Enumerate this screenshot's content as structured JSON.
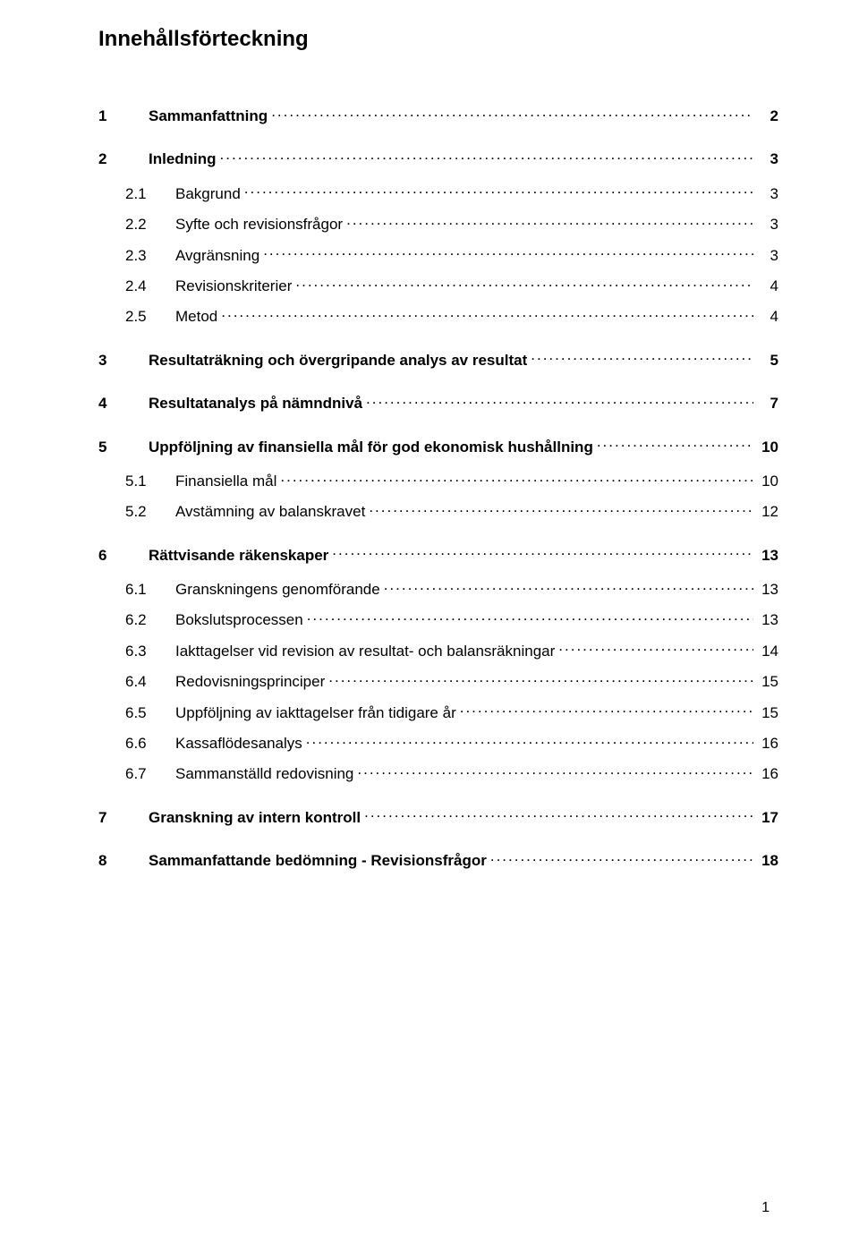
{
  "title": "Innehållsförteckning",
  "page_number": "1",
  "toc": [
    {
      "level": 0,
      "num": "1",
      "label": "Sammanfattning",
      "page": "2"
    },
    {
      "level": 0,
      "num": "2",
      "label": "Inledning",
      "page": "3"
    },
    {
      "level": 1,
      "num": "2.1",
      "label": "Bakgrund",
      "page": "3"
    },
    {
      "level": 1,
      "num": "2.2",
      "label": "Syfte och revisionsfrågor",
      "page": "3"
    },
    {
      "level": 1,
      "num": "2.3",
      "label": "Avgränsning",
      "page": "3"
    },
    {
      "level": 1,
      "num": "2.4",
      "label": "Revisionskriterier",
      "page": "4"
    },
    {
      "level": 1,
      "num": "2.5",
      "label": "Metod",
      "page": "4"
    },
    {
      "level": 0,
      "num": "3",
      "label": "Resultaträkning och övergripande analys av resultat",
      "page": "5"
    },
    {
      "level": 0,
      "num": "4",
      "label": "Resultatanalys på nämndnivå",
      "page": "7"
    },
    {
      "level": 0,
      "num": "5",
      "label": "Uppföljning av finansiella mål för god ekonomisk hushållning",
      "page": "10"
    },
    {
      "level": 1,
      "num": "5.1",
      "label": "Finansiella mål",
      "page": "10"
    },
    {
      "level": 1,
      "num": "5.2",
      "label": "Avstämning av balanskravet",
      "page": "12"
    },
    {
      "level": 0,
      "num": "6",
      "label": "Rättvisande räkenskaper",
      "page": "13"
    },
    {
      "level": 1,
      "num": "6.1",
      "label": "Granskningens genomförande",
      "page": "13"
    },
    {
      "level": 1,
      "num": "6.2",
      "label": "Bokslutsprocessen",
      "page": "13"
    },
    {
      "level": 1,
      "num": "6.3",
      "label": "Iakttagelser vid revision av resultat- och balansräkningar",
      "page": "14"
    },
    {
      "level": 1,
      "num": "6.4",
      "label": "Redovisningsprinciper",
      "page": "15"
    },
    {
      "level": 1,
      "num": "6.5",
      "label": "Uppföljning av iakttagelser från tidigare år",
      "page": "15"
    },
    {
      "level": 1,
      "num": "6.6",
      "label": "Kassaflödesanalys",
      "page": "16"
    },
    {
      "level": 1,
      "num": "6.7",
      "label": "Sammanställd redovisning",
      "page": "16"
    },
    {
      "level": 0,
      "num": "7",
      "label": "Granskning av intern kontroll",
      "page": "17"
    },
    {
      "level": 0,
      "num": "8",
      "label": "Sammanfattande bedömning - Revisionsfrågor",
      "page": "18"
    }
  ]
}
